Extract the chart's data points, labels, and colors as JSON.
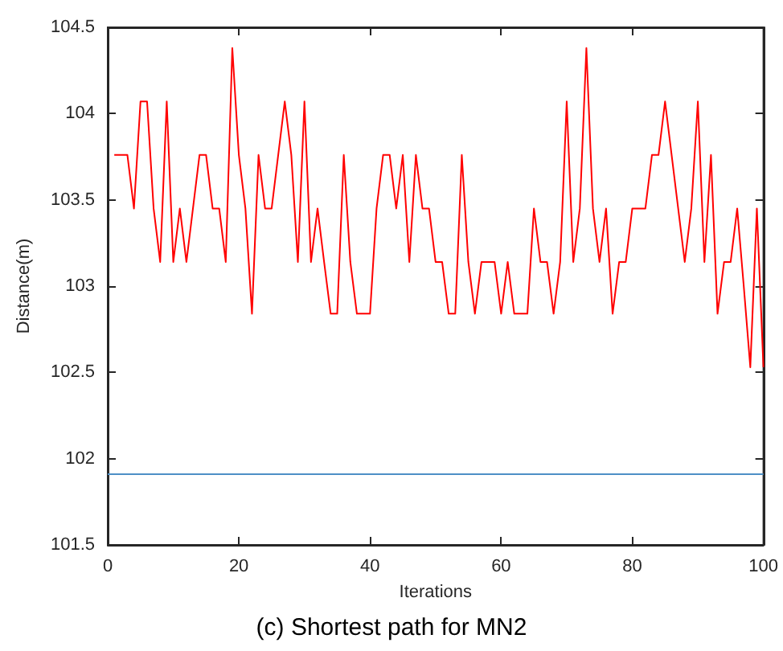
{
  "chart_data": {
    "type": "line",
    "title": "(c) Shortest path for MN2",
    "xlabel": "Iterations",
    "ylabel": "Distance(m)",
    "xlim": [
      0,
      100
    ],
    "xticks": [
      0,
      20,
      40,
      60,
      80,
      100
    ],
    "ylim": [
      101.5,
      104.5
    ],
    "yticks": [
      101.5,
      102,
      102.5,
      103,
      103.5,
      104,
      104.5
    ],
    "grid": false,
    "marker": "none",
    "line_style": "solid",
    "series": [
      {
        "color": "#ff0000",
        "x": [
          1,
          2,
          3,
          4,
          5,
          6,
          7,
          8,
          9,
          10,
          11,
          12,
          13,
          14,
          15,
          16,
          17,
          18,
          19,
          20,
          21,
          22,
          23,
          24,
          25,
          26,
          27,
          28,
          29,
          30,
          31,
          32,
          33,
          34,
          35,
          36,
          37,
          38,
          39,
          40,
          41,
          42,
          43,
          44,
          45,
          46,
          47,
          48,
          49,
          50,
          51,
          52,
          53,
          54,
          55,
          56,
          57,
          58,
          59,
          60,
          61,
          62,
          63,
          64,
          65,
          66,
          67,
          68,
          69,
          70,
          71,
          72,
          73,
          74,
          75,
          76,
          77,
          78,
          79,
          80,
          81,
          82,
          83,
          84,
          85,
          86,
          87,
          88,
          89,
          90,
          91,
          92,
          93,
          94,
          95,
          96,
          97,
          98,
          99,
          100
        ],
        "values": [
          103.76,
          103.76,
          103.76,
          103.45,
          104.07,
          104.07,
          103.45,
          103.14,
          104.07,
          103.14,
          103.45,
          103.14,
          103.45,
          103.76,
          103.76,
          103.45,
          103.45,
          103.14,
          104.38,
          103.76,
          103.45,
          102.84,
          103.76,
          103.45,
          103.45,
          103.76,
          104.07,
          103.76,
          103.14,
          104.07,
          103.14,
          103.45,
          103.14,
          102.84,
          102.84,
          103.76,
          103.14,
          102.84,
          102.84,
          102.84,
          103.45,
          103.76,
          103.76,
          103.45,
          103.76,
          103.14,
          103.76,
          103.45,
          103.45,
          103.14,
          103.14,
          102.84,
          102.84,
          103.76,
          103.14,
          102.84,
          103.14,
          103.14,
          103.14,
          102.84,
          103.14,
          102.84,
          102.84,
          102.84,
          103.45,
          103.14,
          103.14,
          102.84,
          103.14,
          104.07,
          103.14,
          103.45,
          104.38,
          103.45,
          103.14,
          103.45,
          102.84,
          103.14,
          103.14,
          103.45,
          103.45,
          103.45,
          103.76,
          103.76,
          104.07,
          103.76,
          103.45,
          103.14,
          103.45,
          104.07,
          103.14,
          103.76,
          102.84,
          103.14,
          103.14,
          103.45,
          103.0,
          102.53,
          103.45,
          102.53
        ]
      },
      {
        "color": "#4d8fc6",
        "x": [
          0,
          100
        ],
        "values": [
          101.91,
          101.91
        ]
      }
    ]
  }
}
